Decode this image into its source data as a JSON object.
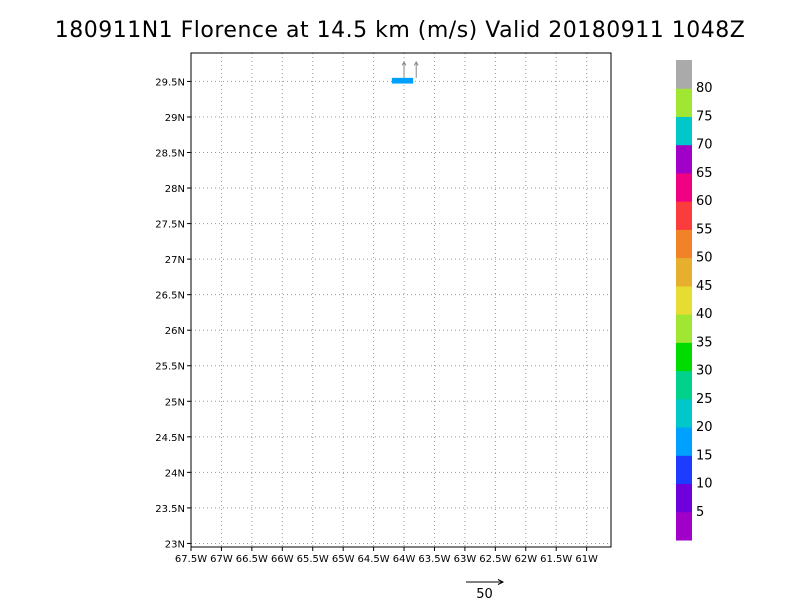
{
  "chart_data": {
    "type": "heatmap",
    "title": "180911N1 Florence at 14.5 km (m/s) Valid 20180911  1048Z",
    "xlabel": "",
    "ylabel": "",
    "xlim": [
      -67.5,
      -60.6
    ],
    "ylim": [
      22.95,
      29.9
    ],
    "x_ticks": [
      -67.5,
      -67,
      -66.5,
      -66,
      -65.5,
      -65,
      -64.5,
      -64,
      -63.5,
      -63,
      -62.5,
      -62,
      -61.5,
      -61
    ],
    "x_tick_labels": [
      "67.5W",
      "67W",
      "66.5W",
      "66W",
      "65.5W",
      "65W",
      "64.5W",
      "64W",
      "63.5W",
      "63W",
      "62.5W",
      "62W",
      "61.5W",
      "61W"
    ],
    "y_ticks": [
      23,
      23.5,
      24,
      24.5,
      25,
      25.5,
      26,
      26.5,
      27,
      27.5,
      28,
      28.5,
      29,
      29.5
    ],
    "y_tick_labels": [
      "23N",
      "23.5N",
      "24N",
      "24.5N",
      "25N",
      "25.5N",
      "26N",
      "26.5N",
      "27N",
      "27.5N",
      "28N",
      "28.5N",
      "29N",
      "29.5N"
    ],
    "grid": true,
    "data_cells": [
      {
        "lon_min": -64.2,
        "lon_max": -63.85,
        "lat_min": 29.47,
        "lat_max": 29.55,
        "value": 18
      }
    ],
    "wind_vectors": [
      {
        "lon": -64.0,
        "lat": 29.55,
        "u": 0,
        "v": 10
      },
      {
        "lon": -63.8,
        "lat": 29.55,
        "u": 0,
        "v": 10
      }
    ],
    "colorbar": {
      "boundaries": [
        5,
        10,
        15,
        20,
        25,
        30,
        35,
        40,
        45,
        50,
        55,
        60,
        65,
        70,
        75,
        80
      ],
      "labels": [
        "5",
        "10",
        "15",
        "20",
        "25",
        "30",
        "35",
        "40",
        "45",
        "50",
        "55",
        "60",
        "65",
        "70",
        "75",
        "80"
      ],
      "colors": [
        "#a000c8",
        "#6e00dc",
        "#1e3cff",
        "#00a0ff",
        "#00c8c8",
        "#00d28c",
        "#00dc00",
        "#a0e632",
        "#e6dc32",
        "#e6af2d",
        "#f08228",
        "#fa3c3c",
        "#f00082",
        "#a000c8",
        "#00c8c8",
        "#a0e632",
        "#aaaaaa"
      ]
    },
    "reference_vector": {
      "value": 50,
      "label": "50"
    }
  }
}
